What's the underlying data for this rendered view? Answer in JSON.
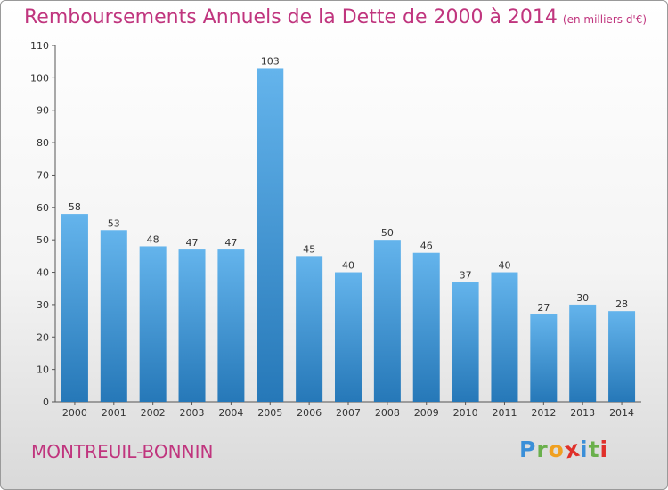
{
  "title": "Remboursements Annuels de la Dette de 2000 à 2014",
  "subtitle": "(en milliers d'€)",
  "city": "MONTREUIL-BONNIN",
  "logo": {
    "letters": [
      "P",
      "r",
      "o",
      "x",
      "i",
      "t",
      "i"
    ],
    "colors": [
      "#3a8fd8",
      "#6ab04c",
      "#f0a020",
      "#e0302a",
      "#3a8fd8",
      "#6ab04c",
      "#e0302a"
    ]
  },
  "colors": {
    "accent": "#c0357e",
    "bar_light": "#64b4ec",
    "bar_dark": "#2678b8"
  },
  "chart_data": {
    "type": "bar",
    "categories": [
      "2000",
      "2001",
      "2002",
      "2003",
      "2004",
      "2005",
      "2006",
      "2007",
      "2008",
      "2009",
      "2010",
      "2011",
      "2012",
      "2013",
      "2014"
    ],
    "values": [
      58,
      53,
      48,
      47,
      47,
      103,
      45,
      40,
      50,
      46,
      37,
      40,
      27,
      30,
      28
    ],
    "ylim": [
      0,
      110
    ],
    "yticks": [
      0,
      10,
      20,
      30,
      40,
      50,
      60,
      70,
      80,
      90,
      100,
      110
    ],
    "grid": false,
    "show_value_labels": true
  }
}
